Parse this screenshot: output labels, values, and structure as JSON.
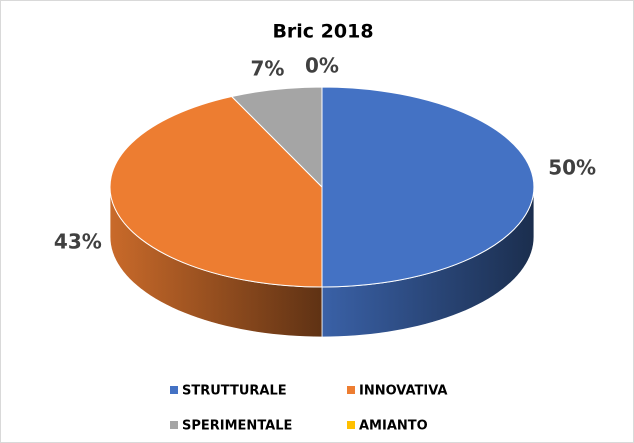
{
  "chart_data": {
    "type": "pie",
    "title": "Bric 2018",
    "categories": [
      "STRUTTURALE",
      "INNOVATIVA",
      "SPERIMENTALE",
      "AMIANTO"
    ],
    "values": [
      50,
      43,
      7,
      0
    ],
    "value_labels": [
      "50%",
      "43%",
      "7%",
      "0%"
    ],
    "colors": [
      "#4472c4",
      "#ed7d31",
      "#a5a5a5",
      "#ffc000"
    ],
    "three_d": true,
    "legend": "bottom"
  }
}
